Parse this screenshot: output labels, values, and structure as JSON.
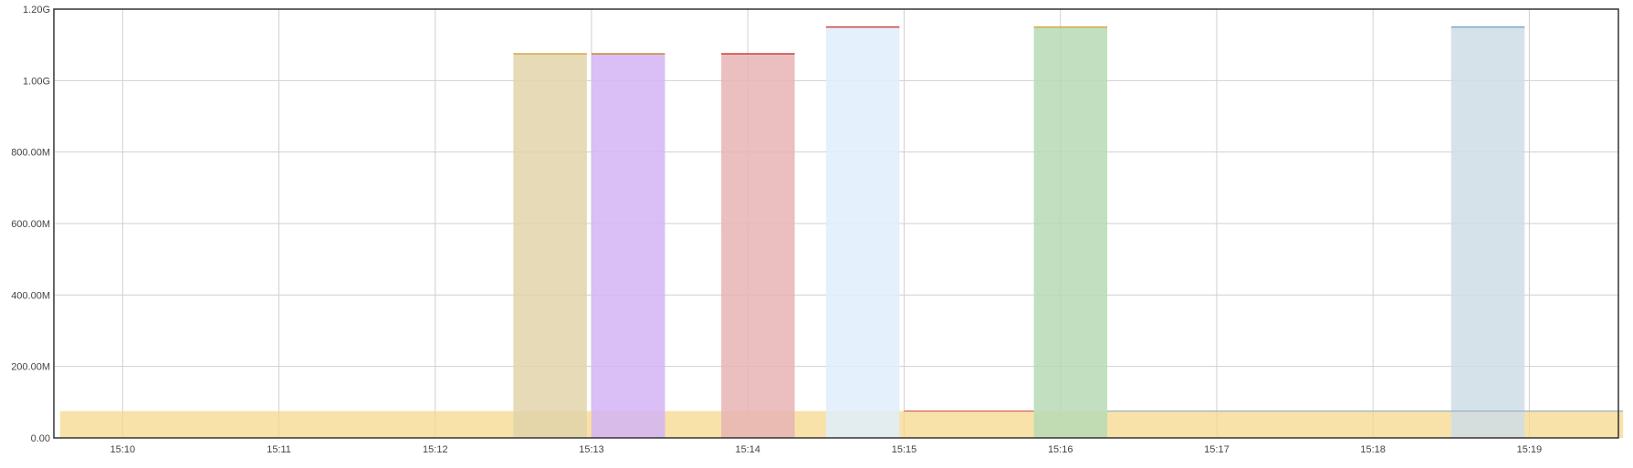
{
  "chart_data": {
    "type": "area",
    "title": "",
    "xlabel": "",
    "ylabel": "",
    "x_ticks": [
      "15:10",
      "15:11",
      "15:12",
      "15:13",
      "15:14",
      "15:15",
      "15:16",
      "15:17",
      "15:18",
      "15:19"
    ],
    "x_range_minutes": [
      9.56,
      19.57
    ],
    "y_ticks": [
      {
        "value": 0,
        "label": "0.00"
      },
      {
        "value": 200000000,
        "label": "200.00M"
      },
      {
        "value": 400000000,
        "label": "400.00M"
      },
      {
        "value": 600000000,
        "label": "600.00M"
      },
      {
        "value": 800000000,
        "label": "800.00M"
      },
      {
        "value": 1000000000,
        "label": "1.00G"
      },
      {
        "value": 1200000000,
        "label": "1.20G"
      }
    ],
    "ylim": [
      0,
      1200000000
    ],
    "grid": true,
    "baseline": {
      "value": 75000000,
      "from": "15:09.6",
      "to": "15:19.6",
      "color": "#f5d88c"
    },
    "series": [
      {
        "from": "15:12.5",
        "to": "15:12.97",
        "value": 1075000000,
        "fill": "#e2d4aa",
        "edge": "#d4a84a"
      },
      {
        "from": "15:13.0",
        "to": "15:13.47",
        "value": 1075000000,
        "fill": "#d4b4f5",
        "edge": "#c98a30"
      },
      {
        "from": "15:13.83",
        "to": "15:14.3",
        "value": 1075000000,
        "fill": "#e8b4b4",
        "edge": "#d04040"
      },
      {
        "from": "15:14.5",
        "to": "15:14.97",
        "value": 1150000000,
        "fill": "#dfeefb",
        "edge": "#d04040"
      },
      {
        "from": "15:15.83",
        "to": "15:16.3",
        "value": 1150000000,
        "fill": "#b7dbb5",
        "edge": "#d4a84a"
      },
      {
        "from": "15:18.5",
        "to": "15:18.97",
        "value": 1150000000,
        "fill": "#cfdde6",
        "edge": "#7aa8c8"
      }
    ],
    "baseline_edge": [
      {
        "from": "15:15.0",
        "to": "15:15.83",
        "color": "#d04040"
      },
      {
        "from": "15:16.3",
        "to": "15:19.6",
        "color": "#8aa8b8"
      }
    ],
    "colors": {
      "grid": "#d0d0d0",
      "axis": "#333333",
      "tick_text": "#444444"
    }
  }
}
